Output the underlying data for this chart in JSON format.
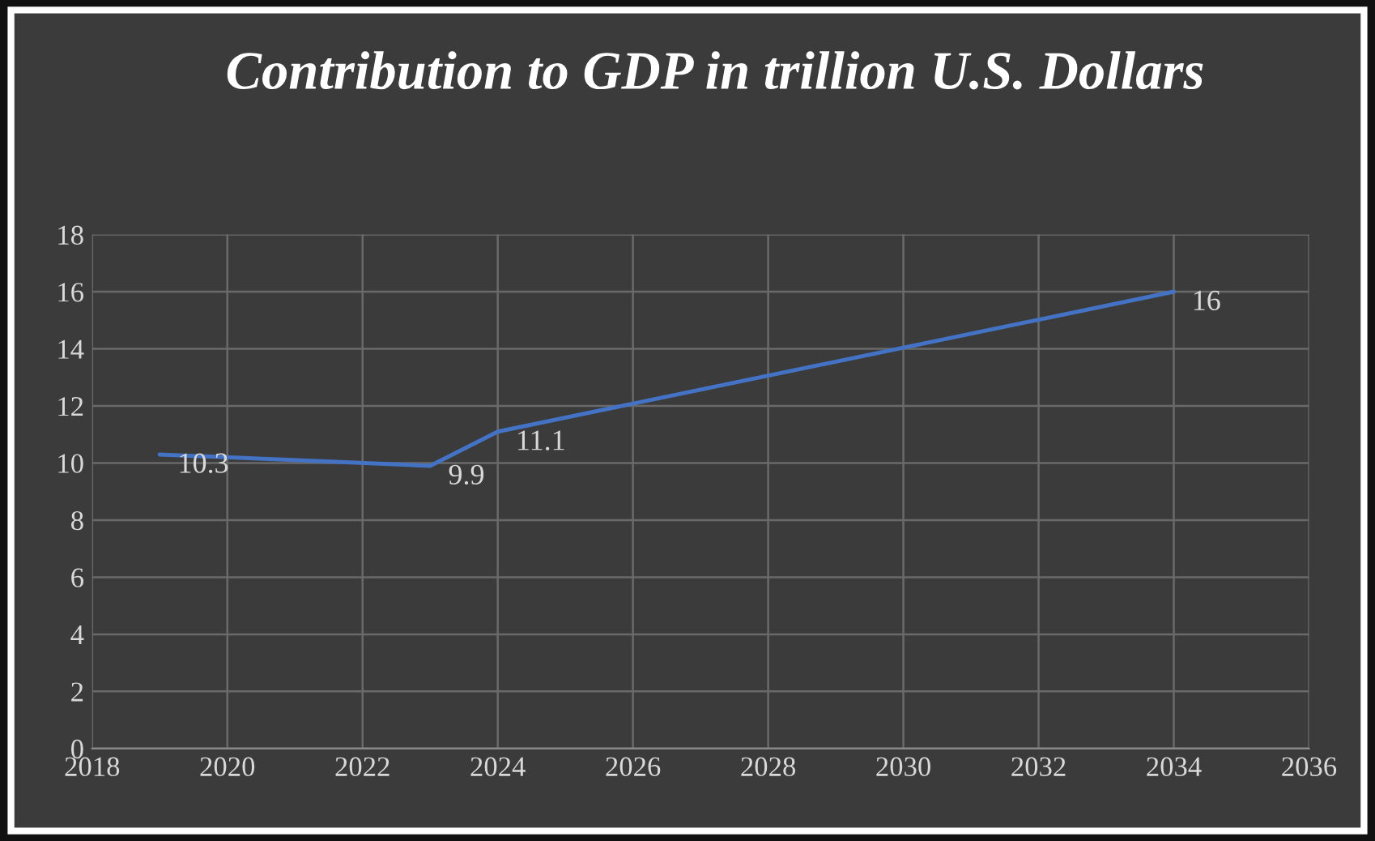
{
  "chart_data": {
    "type": "line",
    "title": "Contribution to GDP in trillion U.S. Dollars",
    "x": [
      2019,
      2023,
      2024,
      2034
    ],
    "series": [
      {
        "color": "#4472c4",
        "values": [
          10.3,
          9.9,
          11.1,
          16
        ]
      }
    ],
    "data_labels": true,
    "xlim": [
      2018,
      2036
    ],
    "xticks": [
      2018,
      2020,
      2022,
      2024,
      2026,
      2028,
      2030,
      2032,
      2034,
      2036
    ],
    "ylim": [
      0,
      18
    ],
    "yticks": [
      0,
      2,
      4,
      6,
      8,
      10,
      12,
      14,
      16,
      18
    ],
    "grid": true,
    "marker": "none",
    "line_style": "solid"
  }
}
